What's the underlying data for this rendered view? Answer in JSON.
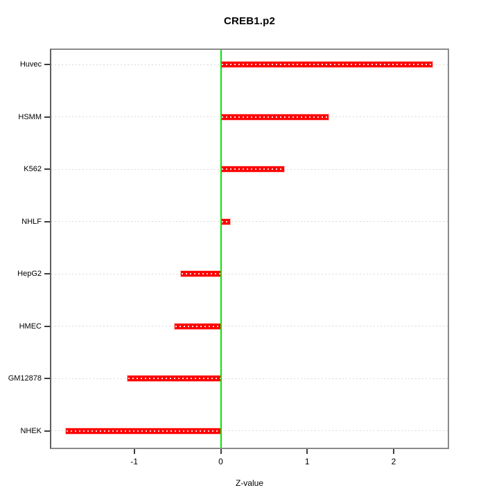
{
  "title": "CREB1.p2",
  "chart_data": {
    "type": "bar",
    "orientation": "horizontal",
    "title": "CREB1.p2",
    "categories": [
      "Huvec",
      "HSMM",
      "K562",
      "NHLF",
      "HepG2",
      "HMEC",
      "GM12878",
      "NHEK"
    ],
    "values": [
      2.45,
      1.25,
      0.73,
      0.11,
      -0.46,
      -0.53,
      -1.08,
      -1.79
    ],
    "xlabel": "Z-value",
    "ylabel": "",
    "xlim": [
      -1.96,
      2.625
    ],
    "x_ticks": [
      -1,
      0,
      1,
      2
    ],
    "x_tick_labels": [
      "-1",
      "0",
      "1",
      "2"
    ],
    "grid": "dotted-horizontal",
    "legend": "none",
    "zero_line_value": 0,
    "colors": {
      "bar": "#ff0000",
      "zero_line": "#00e800",
      "grid": "#d9d9d9",
      "box_border": "#8a8a8a",
      "tick": "#3c3c3c",
      "text": "#000000",
      "background": "#ffffff"
    }
  }
}
